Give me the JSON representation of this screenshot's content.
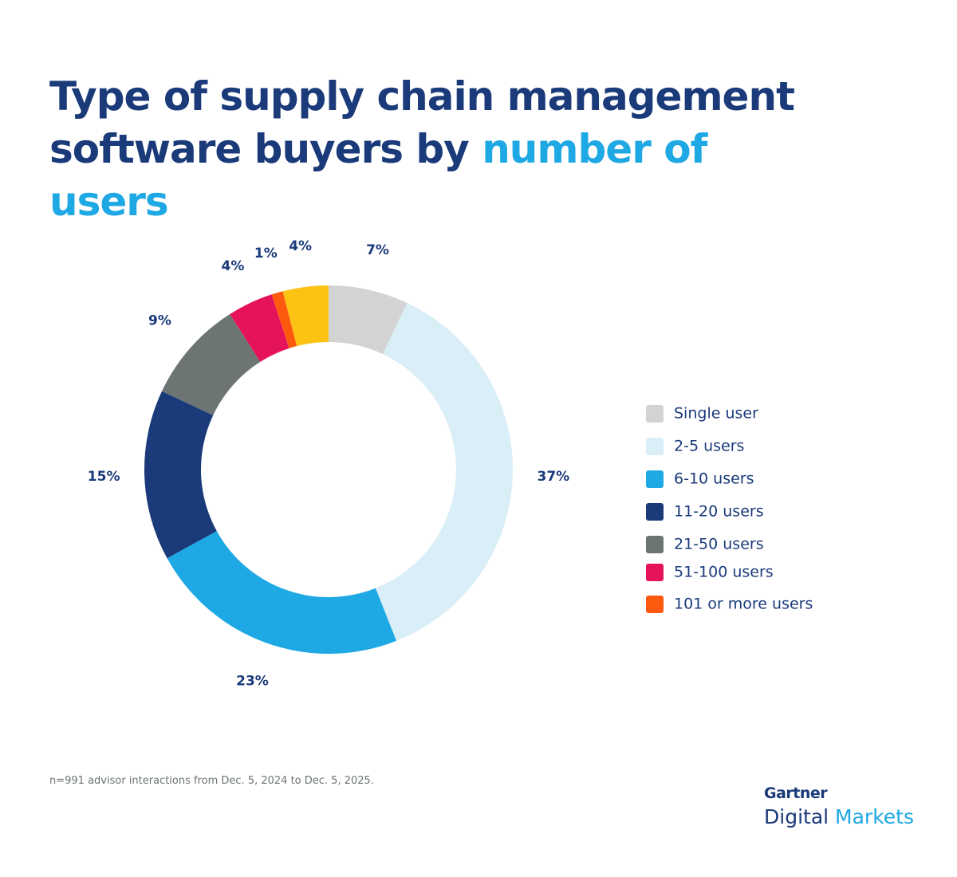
{
  "chart_data": {
    "type": "donut",
    "title": "Type of supply chain management software buyers by",
    "title_highlight": "number of users",
    "categories": [
      "Single user",
      "2-5 users",
      "6-10 users",
      "11-20 users",
      "21-50 users",
      "51-100 users",
      "101 or more users",
      null
    ],
    "values": [
      7,
      37,
      23,
      15,
      9,
      4,
      1,
      4
    ],
    "value_labels": [
      "7%",
      "37%",
      "23%",
      "15%",
      "9%",
      "4%",
      "1%",
      "4%"
    ],
    "colors": [
      "#d3d3d3",
      "#d9eef7",
      "#1ea8e4",
      "#1a3a7a",
      "#6d7574",
      "#e5135b",
      "#fe5a0f",
      "#fdc314"
    ],
    "legend": "right",
    "footnote": "n=991 advisor interactions from Dec. 5, 2024 to Dec. 5, 2025.",
    "logo": {
      "brand": "Gartner",
      "product": "Digital",
      "product_highlight": "Markets"
    }
  }
}
